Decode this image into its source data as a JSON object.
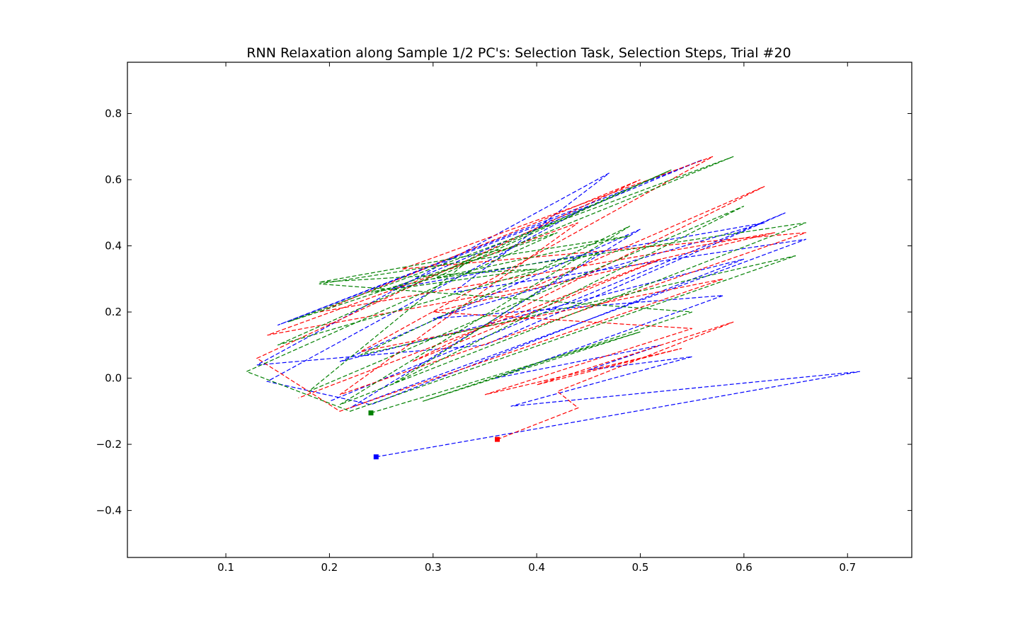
{
  "chart_data": {
    "type": "line",
    "title": "RNN Relaxation along Sample 1/2 PC's: Selection Task, Selection Steps, Trial #20",
    "xlabel": "",
    "ylabel": "",
    "xlim": [
      0.005,
      0.762
    ],
    "ylim": [
      -0.542,
      0.955
    ],
    "x_ticks": [
      0.1,
      0.2,
      0.3,
      0.4,
      0.5,
      0.6,
      0.7
    ],
    "x_tick_labels": [
      "0.1",
      "0.2",
      "0.3",
      "0.4",
      "0.5",
      "0.6",
      "0.7"
    ],
    "y_ticks": [
      -0.4,
      -0.2,
      0.0,
      0.2,
      0.4,
      0.6,
      0.8
    ],
    "y_tick_labels": [
      "−0.4",
      "−0.2",
      "0.0",
      "0.2",
      "0.4",
      "0.6",
      "0.8"
    ],
    "grid": false,
    "legend": "none",
    "line_style": "dashed",
    "colors": {
      "blue": "#0000ff",
      "red": "#ff0000",
      "green": "#008000",
      "axes": "#000000",
      "background": "#ffffff"
    },
    "series": [
      {
        "color": "#0000ff",
        "start_marker": [
          0.245,
          -0.238
        ],
        "values": [
          [
            0.245,
            -0.238
          ],
          [
            0.36,
            -0.175
          ],
          [
            0.712,
            0.02
          ],
          [
            0.375,
            -0.085
          ],
          [
            0.55,
            0.065
          ],
          [
            0.45,
            0.025
          ],
          [
            0.52,
            0.1
          ],
          [
            0.36,
            0.0
          ],
          [
            0.58,
            0.25
          ],
          [
            0.3,
            0.18
          ],
          [
            0.62,
            0.47
          ],
          [
            0.26,
            0.27
          ],
          [
            0.56,
            0.66
          ],
          [
            0.15,
            0.16
          ],
          [
            0.45,
            0.52
          ],
          [
            0.14,
            -0.01
          ],
          [
            0.24,
            -0.08
          ],
          [
            0.6,
            0.36
          ],
          [
            0.21,
            0.05
          ],
          [
            0.5,
            0.45
          ],
          [
            0.22,
            -0.09
          ],
          [
            0.66,
            0.42
          ],
          [
            0.32,
            0.26
          ],
          [
            0.47,
            0.62
          ],
          [
            0.13,
            0.04
          ],
          [
            0.35,
            0.1
          ],
          [
            0.64,
            0.5
          ],
          [
            0.2,
            -0.07
          ]
        ]
      },
      {
        "color": "#ff0000",
        "start_marker": [
          0.362,
          -0.185
        ],
        "values": [
          [
            0.362,
            -0.185
          ],
          [
            0.44,
            -0.09
          ],
          [
            0.42,
            -0.04
          ],
          [
            0.59,
            0.17
          ],
          [
            0.4,
            -0.02
          ],
          [
            0.54,
            0.09
          ],
          [
            0.35,
            -0.05
          ],
          [
            0.55,
            0.15
          ],
          [
            0.3,
            0.2
          ],
          [
            0.63,
            0.44
          ],
          [
            0.19,
            0.2
          ],
          [
            0.5,
            0.6
          ],
          [
            0.13,
            0.06
          ],
          [
            0.21,
            -0.1
          ],
          [
            0.58,
            0.3
          ],
          [
            0.23,
            0.08
          ],
          [
            0.57,
            0.67
          ],
          [
            0.27,
            0.33
          ],
          [
            0.66,
            0.44
          ],
          [
            0.21,
            -0.05
          ],
          [
            0.44,
            0.47
          ],
          [
            0.14,
            0.13
          ],
          [
            0.4,
            0.28
          ],
          [
            0.62,
            0.58
          ],
          [
            0.28,
            0.05
          ],
          [
            0.52,
            0.36
          ],
          [
            0.17,
            -0.06
          ]
        ]
      },
      {
        "color": "#008000",
        "start_marker": [
          0.24,
          -0.105
        ],
        "values": [
          [
            0.24,
            -0.105
          ],
          [
            0.5,
            0.14
          ],
          [
            0.29,
            -0.07
          ],
          [
            0.55,
            0.2
          ],
          [
            0.19,
            0.285
          ],
          [
            0.49,
            0.43
          ],
          [
            0.24,
            0.26
          ],
          [
            0.4,
            0.33
          ],
          [
            0.19,
            0.29
          ],
          [
            0.37,
            0.39
          ],
          [
            0.59,
            0.67
          ],
          [
            0.16,
            0.17
          ],
          [
            0.42,
            0.44
          ],
          [
            0.12,
            0.02
          ],
          [
            0.22,
            -0.1
          ],
          [
            0.65,
            0.37
          ],
          [
            0.23,
            0.07
          ],
          [
            0.49,
            0.46
          ],
          [
            0.21,
            -0.08
          ],
          [
            0.66,
            0.47
          ],
          [
            0.3,
            0.3
          ],
          [
            0.53,
            0.63
          ],
          [
            0.15,
            0.1
          ],
          [
            0.46,
            0.38
          ],
          [
            0.26,
            -0.02
          ],
          [
            0.6,
            0.52
          ],
          [
            0.18,
            -0.04
          ],
          [
            0.34,
            0.37
          ]
        ]
      }
    ]
  }
}
